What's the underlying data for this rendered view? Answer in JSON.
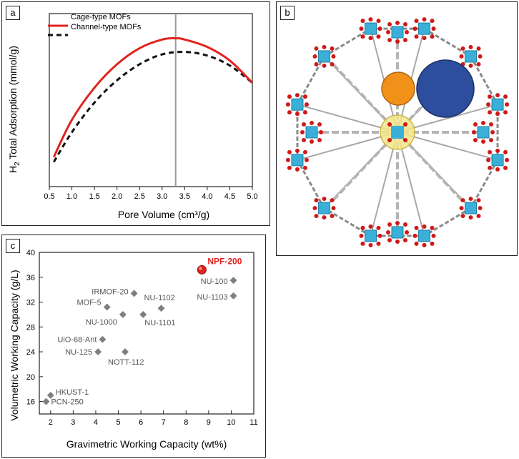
{
  "panels": {
    "a": {
      "label": "a"
    },
    "b": {
      "label": "b"
    },
    "c": {
      "label": "c"
    }
  },
  "colors": {
    "cage": "#e0231e",
    "channel": "#111111",
    "vline": "#9a9a9a",
    "points": "#7f7f7f",
    "highlight": "#e0231e"
  },
  "chart_data": [
    {
      "type": "line",
      "xlabel": "Pore Volume (cm³/g)",
      "ylabel_main": "H",
      "ylabel_sub": "2",
      "ylabel_rest": " Total Adsorption (mmol/g)",
      "xlim": [
        0.5,
        5.0
      ],
      "xticks": [
        0.5,
        1.0,
        1.5,
        2.0,
        2.5,
        3.0,
        3.5,
        4.0,
        4.5,
        5.0
      ],
      "xtick_labels": [
        "0.5",
        "1.0",
        "1.5",
        "2.0",
        "2.5",
        "3.0",
        "3.5",
        "4.0",
        "4.5",
        "5.0"
      ],
      "ylim": [
        10,
        80
      ],
      "vline_x": 3.3,
      "legend": "top-left",
      "series": [
        {
          "name": "Cage-type MOFs",
          "style": "solid",
          "x": [
            0.6,
            1.0,
            1.5,
            2.0,
            2.5,
            3.0,
            3.3,
            3.5,
            4.0,
            4.5,
            5.0
          ],
          "y": [
            22,
            37,
            50,
            59.5,
            66,
            69.5,
            70,
            69.5,
            66.5,
            61,
            52
          ]
        },
        {
          "name": "Channel-type MOFs",
          "style": "dashed",
          "x": [
            0.6,
            1.0,
            1.5,
            2.0,
            2.5,
            3.0,
            3.5,
            4.0,
            4.5,
            5.0
          ],
          "y": [
            20,
            32,
            44,
            53,
            59.5,
            63.5,
            64.5,
            63,
            59,
            52
          ]
        }
      ]
    },
    {
      "type": "scatter",
      "xlabel": "Gravimetric Working Capacity (wt%)",
      "ylabel": "Volumetric Working Capacity (g/L)",
      "xlim": [
        1.5,
        11
      ],
      "ylim": [
        14,
        40
      ],
      "xticks": [
        2,
        3,
        4,
        5,
        6,
        7,
        8,
        9,
        10,
        11
      ],
      "xtick_labels": [
        "2",
        "3",
        "4",
        "5",
        "6",
        "7",
        "8",
        "9",
        "10",
        "11"
      ],
      "yticks": [
        16,
        20,
        24,
        28,
        32,
        36,
        40
      ],
      "ytick_labels": [
        "16",
        "20",
        "24",
        "28",
        "32",
        "36",
        "40"
      ],
      "points": [
        {
          "label": "NPF-200",
          "x": 8.7,
          "y": 37.2,
          "highlight": true
        },
        {
          "label": "NU-100",
          "x": 10.1,
          "y": 35.5
        },
        {
          "label": "NU-1103",
          "x": 10.1,
          "y": 33.0
        },
        {
          "label": "IRMOF-20",
          "x": 5.7,
          "y": 33.4
        },
        {
          "label": "NU-1102",
          "x": 6.9,
          "y": 31.0
        },
        {
          "label": "MOF-5",
          "x": 4.5,
          "y": 31.2
        },
        {
          "label": "NU-1000",
          "x": 5.2,
          "y": 30.0
        },
        {
          "label": "NU-1101",
          "x": 6.1,
          "y": 30.0
        },
        {
          "label": "UiO-68-Ant",
          "x": 4.3,
          "y": 26.0
        },
        {
          "label": "NU-125",
          "x": 4.1,
          "y": 24.0
        },
        {
          "label": "NOTT-112",
          "x": 5.3,
          "y": 24.0
        },
        {
          "label": "HKUST-1",
          "x": 2.0,
          "y": 17.0
        },
        {
          "label": "PCN-250",
          "x": 1.8,
          "y": 16.0
        }
      ]
    }
  ]
}
